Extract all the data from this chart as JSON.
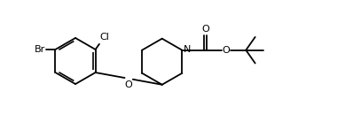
{
  "bg_color": "#ffffff",
  "line_color": "#000000",
  "line_width": 1.3,
  "font_size": 8.0,
  "figsize": [
    3.98,
    1.38
  ],
  "dpi": 100,
  "xlim": [
    -0.5,
    10.5
  ],
  "ylim": [
    0.2,
    3.6
  ]
}
